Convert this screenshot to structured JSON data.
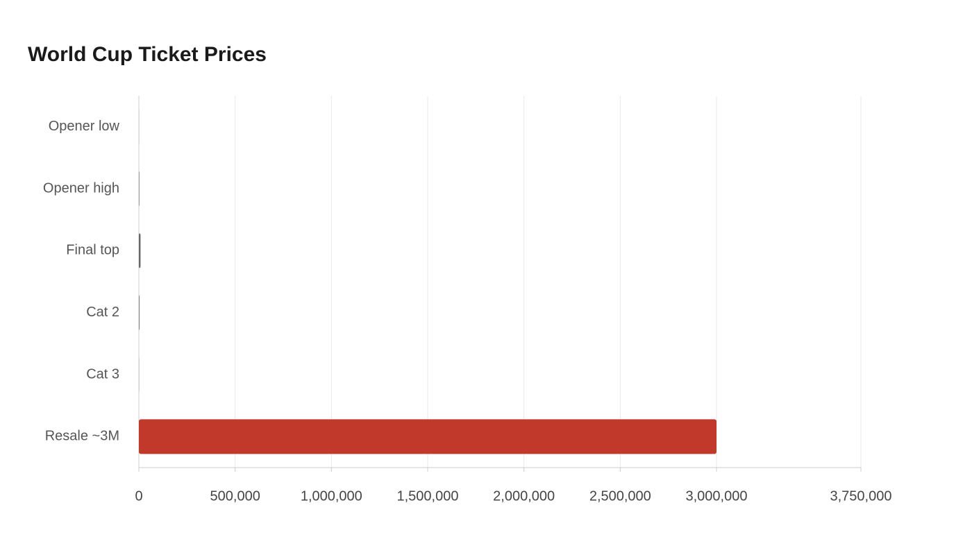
{
  "chart_data": {
    "type": "hbar",
    "title": "World Cup Ticket Prices",
    "categories": [
      "Opener low",
      "Opener high",
      "Final top",
      "Cat 2",
      "Cat 3",
      "Resale ~3M"
    ],
    "values": [
      60,
      2735,
      8680,
      4210,
      2790,
      3000000
    ],
    "colors": [
      "#d9d9d9",
      "#9a9a9a",
      "#666666",
      "#8a8a8a",
      "#cfcfcf",
      "#c0392b"
    ],
    "xlim": [
      0,
      3750000
    ],
    "xticks": [
      0,
      {
        "value": 500000,
        "label": "500,000"
      },
      {
        "value": 1000000,
        "label": "1,000,000"
      },
      {
        "value": 1500000,
        "label": "1,500,000"
      },
      {
        "value": 2000000,
        "label": "2,000,000"
      },
      {
        "value": 2500000,
        "label": "2,500,000"
      },
      {
        "value": 3000000,
        "label": "3,000,000"
      },
      {
        "value": 3750000,
        "label": "3,750,000"
      }
    ],
    "grid": true
  }
}
